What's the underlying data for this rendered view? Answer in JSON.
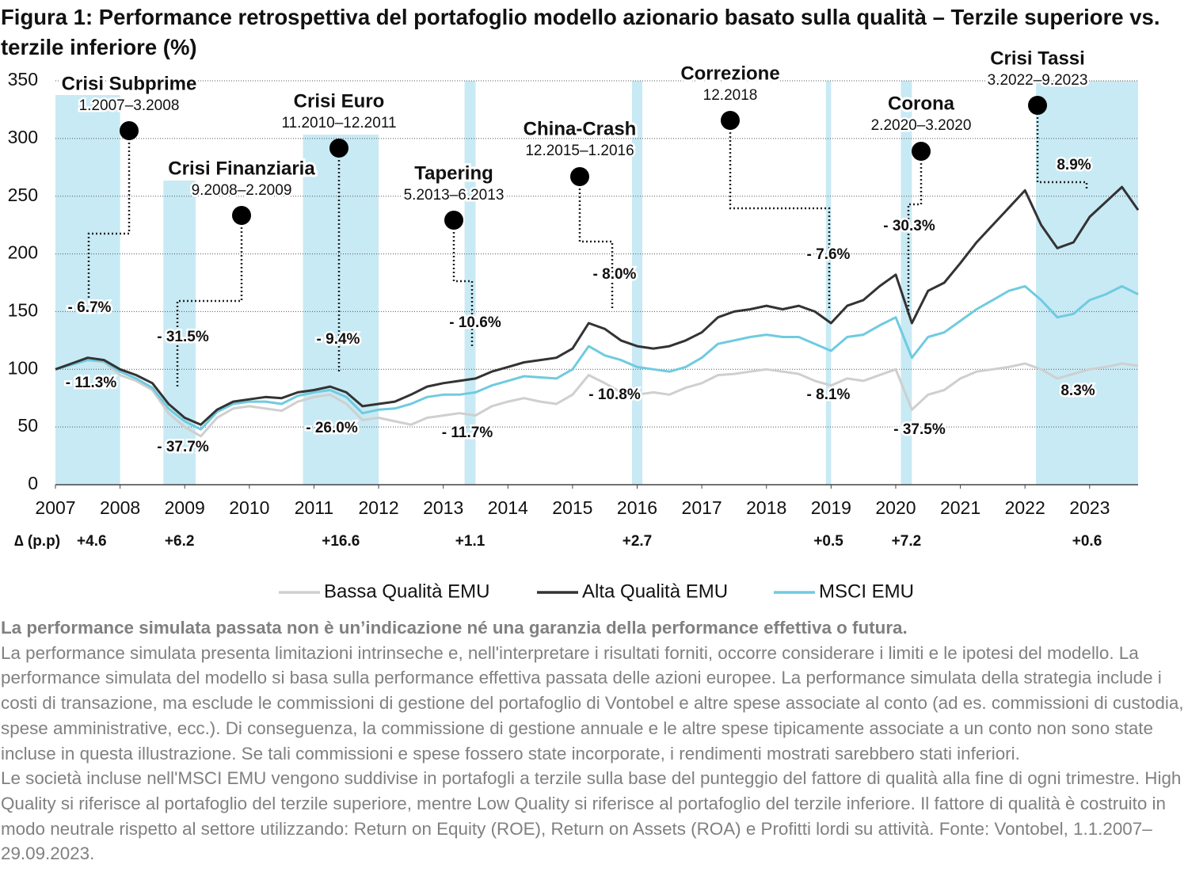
{
  "chart_data": {
    "type": "line",
    "title": "Figura 1: Performance retrospettiva del portafoglio modello azionario basato sulla qualità – Terzile superiore vs. terzile inferiore (%)",
    "x": [
      2007,
      2007.25,
      2007.5,
      2007.75,
      2008,
      2008.25,
      2008.5,
      2008.75,
      2009,
      2009.25,
      2009.5,
      2009.75,
      2010,
      2010.25,
      2010.5,
      2010.75,
      2011,
      2011.25,
      2011.5,
      2011.75,
      2012,
      2012.25,
      2012.5,
      2012.75,
      2013,
      2013.25,
      2013.5,
      2013.75,
      2014,
      2014.25,
      2014.5,
      2014.75,
      2015,
      2015.25,
      2015.5,
      2015.75,
      2016,
      2016.25,
      2016.5,
      2016.75,
      2017,
      2017.25,
      2017.5,
      2017.75,
      2018,
      2018.25,
      2018.5,
      2018.75,
      2019,
      2019.25,
      2019.5,
      2019.75,
      2020,
      2020.25,
      2020.5,
      2020.75,
      2021,
      2021.25,
      2021.5,
      2021.75,
      2022,
      2022.25,
      2022.5,
      2022.75,
      2023,
      2023.25,
      2023.5,
      2023.75
    ],
    "series": [
      {
        "name": "Bassa Qualità EMU",
        "color": "#cfcfcf",
        "values": [
          100,
          104,
          108,
          106,
          95,
          90,
          82,
          62,
          50,
          42,
          58,
          66,
          68,
          66,
          64,
          72,
          76,
          78,
          70,
          56,
          58,
          55,
          52,
          58,
          60,
          62,
          60,
          68,
          72,
          75,
          72,
          70,
          78,
          95,
          88,
          80,
          78,
          80,
          78,
          84,
          88,
          95,
          96,
          98,
          100,
          98,
          96,
          90,
          86,
          92,
          90,
          95,
          100,
          65,
          78,
          82,
          92,
          98,
          100,
          102,
          105,
          100,
          92,
          96,
          100,
          102,
          105,
          103
        ]
      },
      {
        "name": "Alta Qualità EMU",
        "color": "#333333",
        "values": [
          100,
          105,
          110,
          108,
          100,
          95,
          88,
          70,
          58,
          52,
          65,
          72,
          74,
          76,
          75,
          80,
          82,
          85,
          80,
          68,
          70,
          72,
          78,
          85,
          88,
          90,
          92,
          98,
          102,
          106,
          108,
          110,
          118,
          140,
          135,
          125,
          120,
          118,
          120,
          125,
          132,
          145,
          150,
          152,
          155,
          152,
          155,
          150,
          140,
          155,
          160,
          172,
          182,
          140,
          168,
          175,
          192,
          210,
          225,
          240,
          255,
          225,
          205,
          210,
          232,
          245,
          258,
          238
        ]
      },
      {
        "name": "MSCI EMU",
        "color": "#6fcbe0",
        "values": [
          100,
          104,
          108,
          107,
          98,
          92,
          84,
          66,
          55,
          48,
          63,
          70,
          72,
          72,
          70,
          77,
          80,
          82,
          76,
          62,
          65,
          66,
          70,
          76,
          78,
          78,
          80,
          86,
          90,
          94,
          93,
          92,
          100,
          120,
          112,
          108,
          102,
          100,
          98,
          102,
          110,
          122,
          125,
          128,
          130,
          128,
          128,
          122,
          116,
          128,
          130,
          138,
          145,
          110,
          128,
          132,
          142,
          152,
          160,
          168,
          172,
          160,
          145,
          148,
          160,
          165,
          172,
          165
        ]
      }
    ],
    "xlim": [
      2007,
      2023.75
    ],
    "xticks": [
      2007,
      2008,
      2009,
      2010,
      2011,
      2012,
      2013,
      2014,
      2015,
      2016,
      2017,
      2018,
      2019,
      2020,
      2021,
      2022,
      2023
    ],
    "ylim": [
      0,
      350
    ],
    "yticks": [
      0,
      50,
      100,
      150,
      200,
      250,
      300,
      350
    ],
    "grid": true,
    "band_color": "#c8eaf4",
    "delta_label": "∆ (p.p)",
    "crises": [
      {
        "name": "Crisi Subprime",
        "period": "1.2007–3.2008",
        "start": 2007,
        "end": 2008,
        "top_label": "- 6.7%",
        "bottom_label": "- 11.3%",
        "delta": "+4.6"
      },
      {
        "name": "Crisi Finanziaria",
        "period": "9.2008–2.2009",
        "start": 2008.67,
        "end": 2009.17,
        "top_label": "- 31.5%",
        "bottom_label": "- 37.7%",
        "delta": "+6.2"
      },
      {
        "name": "Crisi Euro",
        "period": "11.2010–12.2011",
        "start": 2010.83,
        "end": 2012,
        "top_label": "- 9.4%",
        "bottom_label": "- 26.0%",
        "delta": "+16.6"
      },
      {
        "name": "Tapering",
        "period": "5.2013–6.2013",
        "start": 2013.33,
        "end": 2013.5,
        "top_label": "- 10.6%",
        "bottom_label": "- 11.7%",
        "delta": "+1.1"
      },
      {
        "name": "China-Crash",
        "period": "12.2015–1.2016",
        "start": 2015.92,
        "end": 2016.08,
        "top_label": "- 8.0%",
        "bottom_label": "- 10.8%",
        "delta": "+2.7"
      },
      {
        "name": "Correzione",
        "period": "12.2018",
        "start": 2018.92,
        "end": 2019.0,
        "top_label": "- 7.6%",
        "bottom_label": "- 8.1%",
        "delta": "+0.5"
      },
      {
        "name": "Corona",
        "period": "2.2020–3.2020",
        "start": 2020.08,
        "end": 2020.25,
        "top_label": "- 30.3%",
        "bottom_label": "- 37.5%",
        "delta": "+7.2"
      },
      {
        "name": "Crisi Tassi",
        "period": "3.2022–9.2023",
        "start": 2022.17,
        "end": 2023.75,
        "top_label": "8.9%",
        "bottom_label": "8.3%",
        "delta": "+0.6"
      }
    ],
    "footnote": [
      "La performance simulata passata non è un’indicazione né una garanzia della performance effettiva o futura.",
      "La performance simulata presenta limitazioni intrinseche e, nell'interpretare i risultati forniti, occorre considerare i limiti e le ipotesi del modello. La performance simulata del modello si basa sulla performance effettiva passata delle azioni europee. La performance simulata della strategia include i costi di transazione, ma esclude le commissioni di gestione del portafoglio di Vontobel e altre spese associate al conto (ad es. commissioni di custodia, spese amministrative, ecc.). Di conseguenza, la commissione di gestione annuale e le altre spese tipicamente associate a un conto non sono state incluse in questa illustrazione. Se tali commissioni e spese fossero state incorporate, i rendimenti mostrati sarebbero stati inferiori.",
      "Le società incluse nell'MSCI EMU vengono suddivise in portafogli a terzile sulla base del punteggio del fattore di qualità alla fine di ogni trimestre. High Quality si riferisce al portafoglio del terzile superiore, mentre Low Quality si riferisce al portafoglio del terzile inferiore. Il fattore di qualità è costruito in modo neutrale rispetto al settore utilizzando: Return on Equity (ROE), Return on Assets (ROA) e Profitti lordi su attività. Fonte: Vontobel, 1.1.2007–29.09.2023."
    ]
  }
}
